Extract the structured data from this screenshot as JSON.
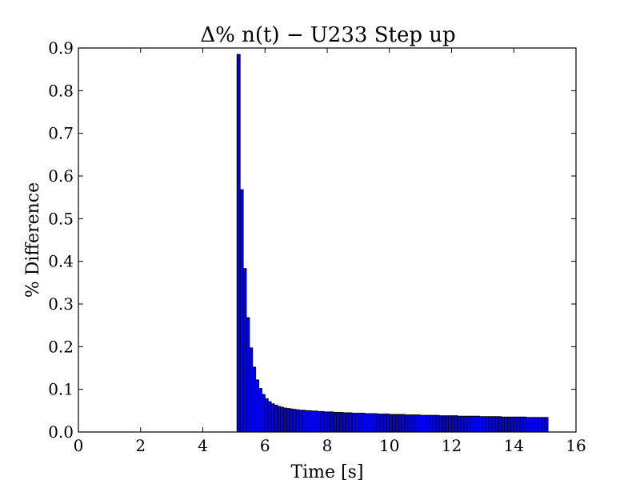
{
  "chart_data": {
    "type": "bar",
    "title": "Δ% n(t) − U233 Step up",
    "xlabel": "Time [s]",
    "ylabel": "% Difference",
    "xlim": [
      0,
      16
    ],
    "ylim": [
      0,
      0.9
    ],
    "xticks": [
      0,
      2,
      4,
      6,
      8,
      10,
      12,
      14,
      16
    ],
    "xtick_labels": [
      "0",
      "2",
      "4",
      "6",
      "8",
      "10",
      "12",
      "14",
      "16"
    ],
    "yticks": [
      0.0,
      0.1,
      0.2,
      0.3,
      0.4,
      0.5,
      0.6,
      0.7,
      0.8,
      0.9
    ],
    "ytick_labels": [
      "0.0",
      "0.1",
      "0.2",
      "0.3",
      "0.4",
      "0.5",
      "0.6",
      "0.7",
      "0.8",
      "0.9"
    ],
    "bar_color": "#0000ff",
    "edge_color": "#000000",
    "grid": false,
    "series": [
      {
        "x": [
          5.1,
          5.2,
          5.3,
          5.4,
          5.5,
          5.6,
          5.7,
          5.8,
          5.9,
          6.0,
          6.1,
          6.2,
          6.3,
          6.4,
          6.5,
          6.6,
          6.7,
          6.8,
          6.9,
          7.0,
          7.1,
          7.2,
          7.3,
          7.4,
          7.5,
          7.6,
          7.7,
          7.8,
          7.9,
          8.0,
          8.1,
          8.2,
          8.3,
          8.4,
          8.5,
          8.6,
          8.7,
          8.8,
          8.9,
          9.0,
          9.1,
          9.2,
          9.3,
          9.4,
          9.5,
          9.6,
          9.7,
          9.8,
          9.9,
          10.0,
          10.1,
          10.2,
          10.3,
          10.4,
          10.5,
          10.6,
          10.7,
          10.8,
          10.9,
          11.0,
          11.1,
          11.2,
          11.3,
          11.4,
          11.5,
          11.6,
          11.7,
          11.8,
          11.9,
          12.0,
          12.1,
          12.2,
          12.3,
          12.4,
          12.5,
          12.6,
          12.7,
          12.8,
          12.9,
          13.0,
          13.1,
          13.2,
          13.3,
          13.4,
          13.5,
          13.6,
          13.7,
          13.8,
          13.9,
          14.0,
          14.1,
          14.2,
          14.3,
          14.4,
          14.5,
          14.6,
          14.7,
          14.8,
          14.9,
          15.0
        ],
        "values": [
          0.885,
          0.568,
          0.383,
          0.268,
          0.197,
          0.152,
          0.122,
          0.102,
          0.088,
          0.078,
          0.071,
          0.066,
          0.063,
          0.06,
          0.058,
          0.056,
          0.055,
          0.054,
          0.053,
          0.052,
          0.051,
          0.051,
          0.05,
          0.05,
          0.049,
          0.049,
          0.048,
          0.048,
          0.047,
          0.047,
          0.047,
          0.046,
          0.046,
          0.046,
          0.045,
          0.045,
          0.045,
          0.044,
          0.044,
          0.044,
          0.044,
          0.043,
          0.043,
          0.043,
          0.043,
          0.042,
          0.042,
          0.042,
          0.042,
          0.041,
          0.041,
          0.041,
          0.041,
          0.041,
          0.04,
          0.04,
          0.04,
          0.04,
          0.04,
          0.039,
          0.039,
          0.039,
          0.039,
          0.039,
          0.039,
          0.038,
          0.038,
          0.038,
          0.038,
          0.038,
          0.038,
          0.037,
          0.037,
          0.037,
          0.037,
          0.037,
          0.037,
          0.037,
          0.036,
          0.036,
          0.036,
          0.036,
          0.036,
          0.036,
          0.036,
          0.035,
          0.035,
          0.035,
          0.035,
          0.035,
          0.035,
          0.035,
          0.035,
          0.034,
          0.034,
          0.034,
          0.034,
          0.034,
          0.034,
          0.034
        ]
      }
    ]
  }
}
